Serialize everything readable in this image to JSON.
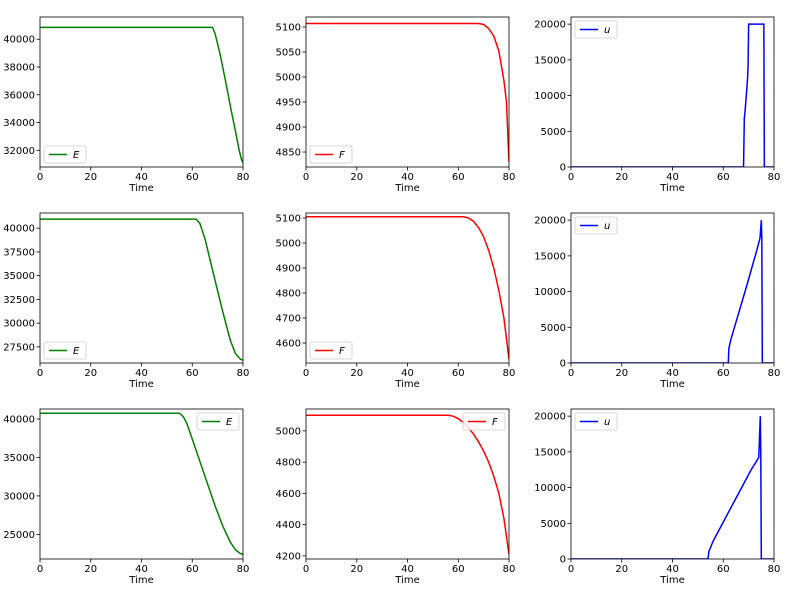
{
  "chart_data": [
    {
      "type": "line",
      "xlabel": "Time",
      "xlim": [
        0,
        80
      ],
      "ylim": [
        30800,
        41600
      ],
      "xticks": [
        0,
        20,
        40,
        60,
        80
      ],
      "yticks": [
        32000,
        34000,
        36000,
        38000,
        40000
      ],
      "legend": "bottom-left",
      "series": [
        {
          "name": "E",
          "color": "#008000",
          "points": [
            [
              0,
              40850
            ],
            [
              68,
              40850
            ],
            [
              69,
              40400
            ],
            [
              71,
              38900
            ],
            [
              73,
              37100
            ],
            [
              75,
              35200
            ],
            [
              77,
              33400
            ],
            [
              78.5,
              32000
            ],
            [
              79.3,
              31400
            ],
            [
              80,
              31100
            ]
          ]
        }
      ]
    },
    {
      "type": "line",
      "xlabel": "Time",
      "xlim": [
        0,
        80
      ],
      "ylim": [
        4820,
        5120
      ],
      "xticks": [
        0,
        20,
        40,
        60,
        80
      ],
      "yticks": [
        4850,
        4900,
        4950,
        5000,
        5050,
        5100
      ],
      "legend": "bottom-left",
      "series": [
        {
          "name": "F",
          "color": "#ff0000",
          "points": [
            [
              0,
              5107
            ],
            [
              68,
              5107
            ],
            [
              70,
              5105
            ],
            [
              72,
              5097
            ],
            [
              74,
              5082
            ],
            [
              76,
              5052
            ],
            [
              78,
              4993
            ],
            [
              79,
              4950
            ],
            [
              80,
              4830
            ]
          ]
        }
      ]
    },
    {
      "type": "line",
      "xlabel": "Time",
      "xlim": [
        0,
        80
      ],
      "ylim": [
        0,
        21000
      ],
      "xticks": [
        0,
        20,
        40,
        60,
        80
      ],
      "yticks": [
        0,
        5000,
        10000,
        15000,
        20000
      ],
      "legend": "top-left",
      "series": [
        {
          "name": "u",
          "color": "#0000ff",
          "points": [
            [
              0,
              0
            ],
            [
              68,
              0
            ],
            [
              68.3,
              6800
            ],
            [
              68.5,
              7400
            ],
            [
              69.3,
              11000
            ],
            [
              69.6,
              12500
            ],
            [
              69.7,
              13500
            ],
            [
              69.8,
              14500
            ],
            [
              70,
              20000
            ],
            [
              76,
              20000
            ],
            [
              76.2,
              0
            ],
            [
              80,
              0
            ]
          ]
        }
      ]
    },
    {
      "type": "line",
      "xlabel": "Time",
      "xlim": [
        0,
        80
      ],
      "ylim": [
        25800,
        41600
      ],
      "xticks": [
        0,
        20,
        40,
        60,
        80
      ],
      "yticks": [
        27500,
        30000,
        32500,
        35000,
        37500,
        40000
      ],
      "legend": "bottom-left",
      "series": [
        {
          "name": "E",
          "color": "#008000",
          "points": [
            [
              0,
              40950
            ],
            [
              61.5,
              40950
            ],
            [
              63,
              40500
            ],
            [
              65,
              38900
            ],
            [
              67,
              36700
            ],
            [
              69,
              34500
            ],
            [
              71,
              32300
            ],
            [
              73,
              30200
            ],
            [
              75,
              28200
            ],
            [
              77,
              26800
            ],
            [
              79,
              26200
            ],
            [
              80,
              26100
            ]
          ]
        }
      ]
    },
    {
      "type": "line",
      "xlabel": "Time",
      "xlim": [
        0,
        80
      ],
      "ylim": [
        4520,
        5120
      ],
      "xticks": [
        0,
        20,
        40,
        60,
        80
      ],
      "yticks": [
        4600,
        4700,
        4800,
        4900,
        5000,
        5100
      ],
      "legend": "bottom-left",
      "series": [
        {
          "name": "F",
          "color": "#ff0000",
          "points": [
            [
              0,
              5105
            ],
            [
              62,
              5105
            ],
            [
              64,
              5100
            ],
            [
              66,
              5087
            ],
            [
              68,
              5062
            ],
            [
              70,
              5025
            ],
            [
              72,
              4970
            ],
            [
              74,
              4900
            ],
            [
              76,
              4810
            ],
            [
              78,
              4700
            ],
            [
              80,
              4535
            ]
          ]
        }
      ]
    },
    {
      "type": "line",
      "xlabel": "Time",
      "xlim": [
        0,
        80
      ],
      "ylim": [
        0,
        21000
      ],
      "xticks": [
        0,
        20,
        40,
        60,
        80
      ],
      "yticks": [
        0,
        5000,
        10000,
        15000,
        20000
      ],
      "legend": "top-left",
      "series": [
        {
          "name": "u",
          "color": "#0000ff",
          "points": [
            [
              0,
              0
            ],
            [
              62,
              0
            ],
            [
              62.2,
              2000
            ],
            [
              63,
              3300
            ],
            [
              65,
              5700
            ],
            [
              67,
              8100
            ],
            [
              69,
              10500
            ],
            [
              71,
              13000
            ],
            [
              73,
              15500
            ],
            [
              74.5,
              17500
            ],
            [
              75,
              20000
            ],
            [
              75.2,
              17500
            ],
            [
              75.4,
              0
            ],
            [
              80,
              0
            ]
          ]
        }
      ]
    },
    {
      "type": "line",
      "xlabel": "Time",
      "xlim": [
        0,
        80
      ],
      "ylim": [
        21800,
        41300
      ],
      "xticks": [
        0,
        20,
        40,
        60,
        80
      ],
      "yticks": [
        25000,
        30000,
        35000,
        40000
      ],
      "legend": "top-right",
      "series": [
        {
          "name": "E",
          "color": "#008000",
          "points": [
            [
              0,
              40750
            ],
            [
              55,
              40750
            ],
            [
              56.5,
              40300
            ],
            [
              58,
              39300
            ],
            [
              60,
              37400
            ],
            [
              63,
              34500
            ],
            [
              66,
              31600
            ],
            [
              69,
              28700
            ],
            [
              72,
              26100
            ],
            [
              75,
              24000
            ],
            [
              77,
              23000
            ],
            [
              79,
              22500
            ],
            [
              80,
              22400
            ]
          ]
        }
      ]
    },
    {
      "type": "line",
      "xlabel": "Time",
      "xlim": [
        0,
        80
      ],
      "ylim": [
        4180,
        5140
      ],
      "xticks": [
        0,
        20,
        40,
        60,
        80
      ],
      "yticks": [
        4200,
        4400,
        4600,
        4800,
        5000
      ],
      "legend": "top-right",
      "series": [
        {
          "name": "F",
          "color": "#ff0000",
          "points": [
            [
              0,
              5100
            ],
            [
              56,
              5100
            ],
            [
              58,
              5094
            ],
            [
              60,
              5078
            ],
            [
              62,
              5053
            ],
            [
              64,
              5020
            ],
            [
              66,
              4980
            ],
            [
              68,
              4930
            ],
            [
              70,
              4870
            ],
            [
              72,
              4800
            ],
            [
              74,
              4710
            ],
            [
              76,
              4600
            ],
            [
              78,
              4440
            ],
            [
              80,
              4210
            ]
          ]
        }
      ]
    },
    {
      "type": "line",
      "xlabel": "Time",
      "xlim": [
        0,
        80
      ],
      "ylim": [
        0,
        21000
      ],
      "xticks": [
        0,
        20,
        40,
        60,
        80
      ],
      "yticks": [
        0,
        5000,
        10000,
        15000,
        20000
      ],
      "legend": "top-left",
      "series": [
        {
          "name": "u",
          "color": "#0000ff",
          "points": [
            [
              0,
              0
            ],
            [
              54,
              0
            ],
            [
              54.3,
              1000
            ],
            [
              56,
              2500
            ],
            [
              59,
              4500
            ],
            [
              62,
              6500
            ],
            [
              65,
              8500
            ],
            [
              68,
              10500
            ],
            [
              71,
              12500
            ],
            [
              74,
              14200
            ],
            [
              74.6,
              20000
            ],
            [
              74.8,
              14500
            ],
            [
              75,
              0
            ],
            [
              80,
              0
            ]
          ]
        }
      ]
    }
  ]
}
